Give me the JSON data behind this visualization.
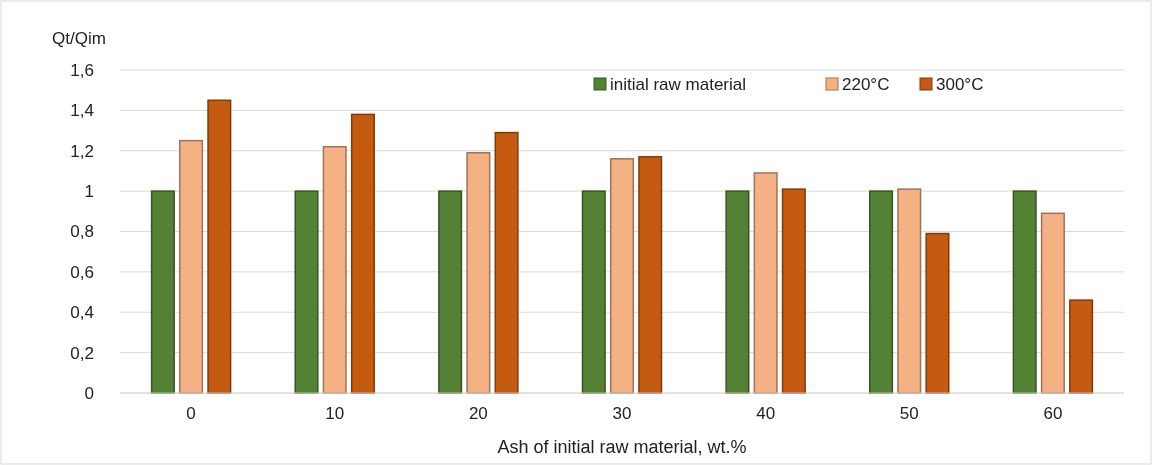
{
  "chart_data": {
    "type": "bar",
    "ylabel": "Qt/Qim",
    "xlabel": "Ash of initial raw material, wt.%",
    "categories": [
      "0",
      "10",
      "20",
      "30",
      "40",
      "50",
      "60"
    ],
    "series": [
      {
        "name": "initial raw material",
        "color": "#548235",
        "values": [
          1,
          1,
          1,
          1,
          1,
          1,
          1
        ]
      },
      {
        "name": "220°C",
        "color": "#f4b183",
        "values": [
          1.25,
          1.22,
          1.19,
          1.16,
          1.09,
          1.01,
          0.89
        ]
      },
      {
        "name": "300°C",
        "color": "#c55a11",
        "values": [
          1.45,
          1.38,
          1.29,
          1.17,
          1.01,
          0.79,
          0.46
        ]
      }
    ],
    "ylim": [
      0,
      1.6
    ],
    "yticks": [
      {
        "value": 0,
        "label": "0"
      },
      {
        "value": 0.2,
        "label": "0,2"
      },
      {
        "value": 0.4,
        "label": "0,4"
      },
      {
        "value": 0.6,
        "label": "0,6"
      },
      {
        "value": 0.8,
        "label": "0,8"
      },
      {
        "value": 1,
        "label": "1"
      },
      {
        "value": 1.2,
        "label": "1,2"
      },
      {
        "value": 1.4,
        "label": "1,4"
      },
      {
        "value": 1.6,
        "label": "1,6"
      }
    ],
    "grid": "y",
    "legend": "top right"
  }
}
